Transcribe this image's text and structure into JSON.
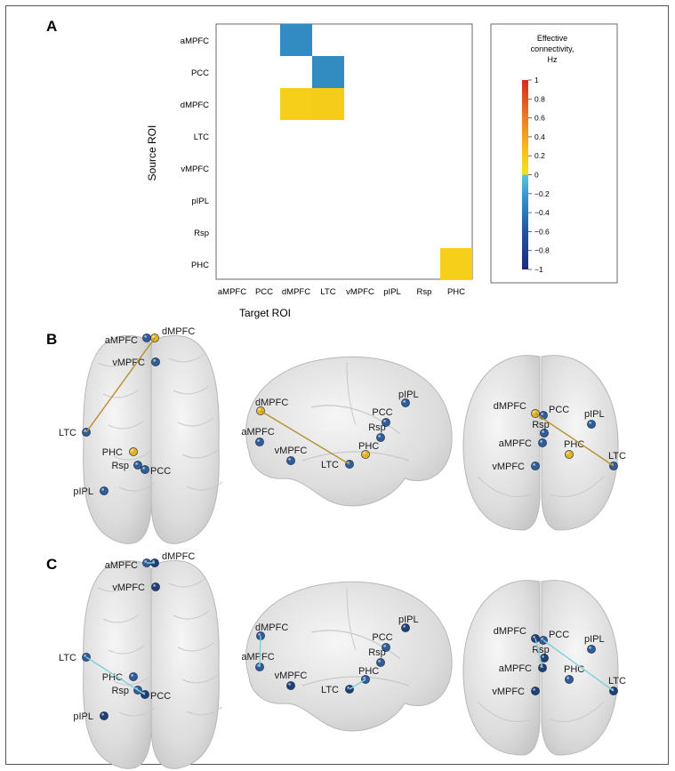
{
  "panels": {
    "a_label": "A",
    "b_label": "B",
    "c_label": "C"
  },
  "chart_data": {
    "type": "heatmap",
    "title": "",
    "xlabel": "Target ROI",
    "ylabel": "Source ROI",
    "rows": [
      "aMPFC",
      "PCC",
      "dMPFC",
      "LTC",
      "vMPFC",
      "pIPL",
      "Rsp",
      "PHC"
    ],
    "columns": [
      "aMPFC",
      "PCC",
      "dMPFC",
      "LTC",
      "vMPFC",
      "pIPL",
      "Rsp",
      "PHC"
    ],
    "cells": [
      {
        "source": "aMPFC",
        "target": "dMPFC",
        "value": -0.3
      },
      {
        "source": "PCC",
        "target": "LTC",
        "value": -0.3
      },
      {
        "source": "dMPFC",
        "target": "dMPFC",
        "value": 0.15
      },
      {
        "source": "dMPFC",
        "target": "LTC",
        "value": 0.17
      },
      {
        "source": "PHC",
        "target": "PHC",
        "value": 0.15
      }
    ],
    "colorbar": {
      "title_lines": [
        "Effective",
        "connectivity,",
        "Hz"
      ],
      "range": [
        -1,
        1
      ],
      "ticks": [
        "1",
        "0.8",
        "0.6",
        "0.4",
        "0.2",
        "0",
        "−0.2",
        "−0.4",
        "−0.6",
        "−0.8",
        "−1"
      ]
    }
  },
  "brain_views": {
    "B": {
      "axial": [
        "aMPFC",
        "dMPFC",
        "vMPFC",
        "LTC",
        "PHC",
        "Rsp",
        "PCC",
        "pIPL"
      ],
      "sagittal": [
        "dMPFC",
        "PCC",
        "pIPL",
        "Rsp",
        "aMPFC",
        "vMPFC",
        "LTC",
        "PHC"
      ],
      "coronal": [
        "dMPFC",
        "PCC",
        "pIPL",
        "Rsp",
        "aMPFC",
        "vMPFC",
        "PHC",
        "LTC"
      ]
    },
    "C": {
      "axial": [
        "aMPFC",
        "dMPFC",
        "vMPFC",
        "LTC",
        "PHC",
        "Rsp",
        "PCC",
        "pIPL"
      ],
      "sagittal": [
        "dMPFC",
        "PCC",
        "pIPL",
        "Rsp",
        "aMPFC",
        "vMPFC",
        "LTC",
        "PHC"
      ],
      "coronal": [
        "dMPFC",
        "PCC",
        "pIPL",
        "Rsp",
        "aMPFC",
        "vMPFC",
        "PHC",
        "LTC"
      ]
    }
  },
  "colors": {
    "positive_node": "#e3b226",
    "negative_node": "#2f5d9a",
    "dark_node": "#1f3f77",
    "positive_edge": "#b8902b",
    "negative_edge": "#7fd0da"
  }
}
